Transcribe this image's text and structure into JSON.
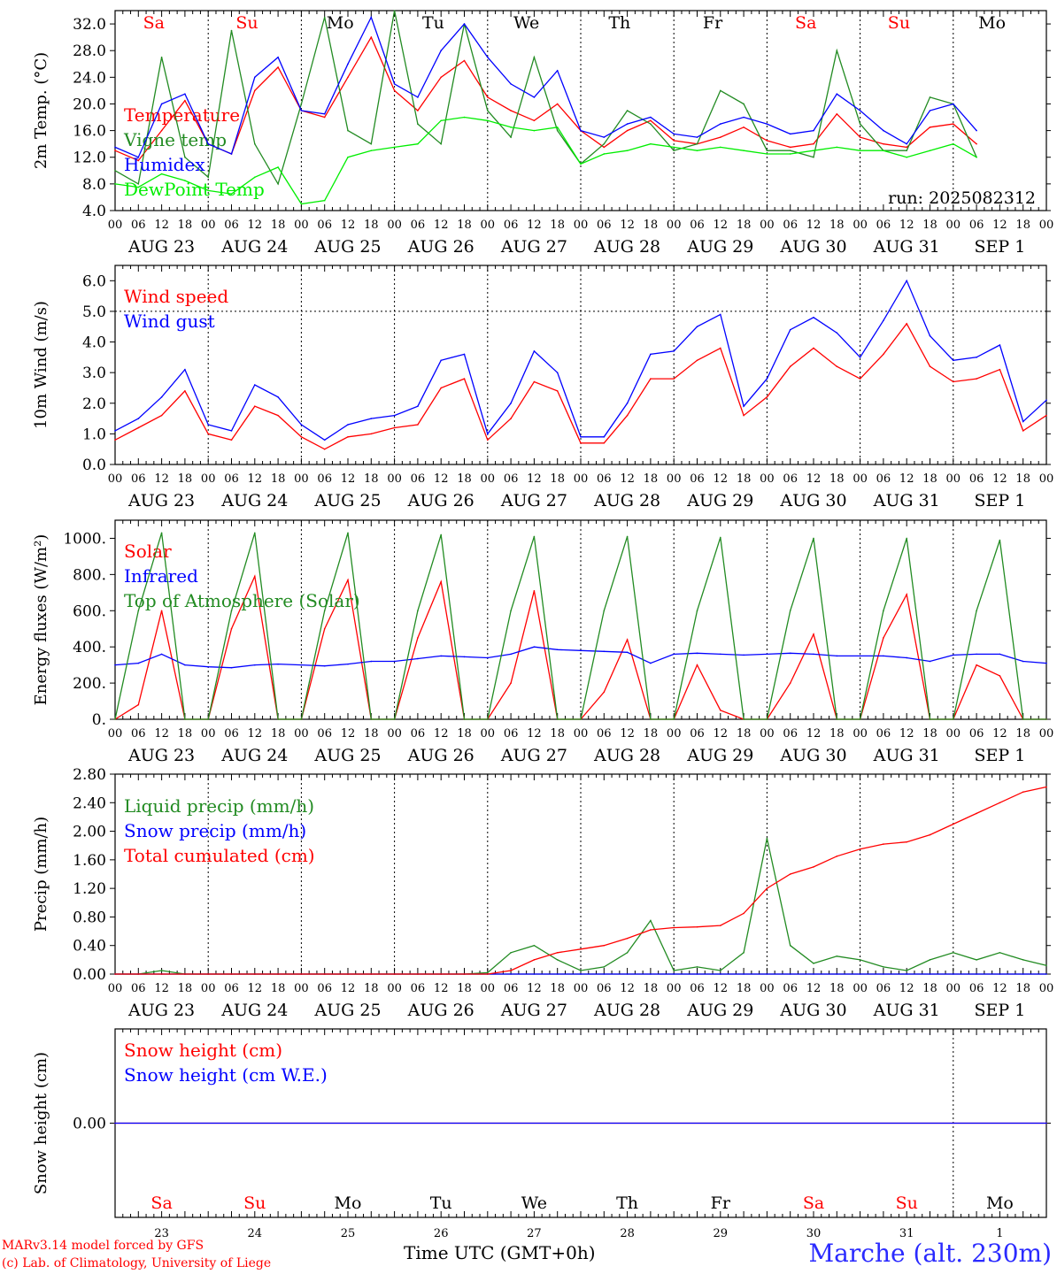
{
  "footer": {
    "model": "MARv3.14 model forced by GFS",
    "lab": "(c) Lab. of Climatology, University of Liege",
    "xlabel": "Time UTC (GMT+0h)",
    "station": "Marche (alt. 230m)"
  },
  "days": {
    "weekdays": [
      "Sa",
      "Su",
      "Mo",
      "Tu",
      "We",
      "Th",
      "Fr",
      "Sa",
      "Su",
      "Mo"
    ],
    "weekend_flags": [
      true,
      true,
      false,
      false,
      false,
      false,
      false,
      true,
      true,
      false
    ],
    "dates": [
      "AUG 23",
      "AUG 24",
      "AUG 25",
      "AUG 26",
      "AUG 27",
      "AUG 28",
      "AUG 29",
      "AUG 30",
      "AUG 31",
      "SEP  1"
    ],
    "day_numbers": [
      "23",
      "24",
      "25",
      "26",
      "27",
      "28",
      "29",
      "30",
      "31",
      "1"
    ],
    "hour_ticks": [
      "00",
      "06",
      "12",
      "18"
    ]
  },
  "colors": {
    "red": "#ff0000",
    "green": "#228b22",
    "blue": "#0000ff",
    "lightgreen": "#00ee00",
    "black": "#000000",
    "weekend": "#ff0000"
  },
  "chart_data": [
    {
      "type": "line",
      "ylabel": "2m Temp. (°C)",
      "yticks": [
        "4.0",
        "8.0",
        "12.0",
        "16.0",
        "20.0",
        "24.0",
        "28.0",
        "32.0"
      ],
      "ylim": [
        4,
        34
      ],
      "run": "run: 2025082312",
      "x_hours": [
        0,
        6,
        12,
        18,
        24,
        30,
        36,
        42,
        48,
        54,
        60,
        66,
        72,
        78,
        84,
        90,
        96,
        102,
        108,
        114,
        120,
        126,
        132,
        138,
        144,
        150,
        156,
        162,
        168,
        174,
        180,
        186,
        192,
        198,
        204,
        210,
        216,
        222,
        228,
        234,
        240
      ],
      "series": [
        {
          "name": "Temperature",
          "color": "red",
          "values": [
            13,
            11.5,
            16,
            20.5,
            14,
            12.5,
            22,
            25.5,
            19,
            18,
            24,
            30,
            22,
            19,
            24,
            26.5,
            21,
            19,
            17.5,
            20,
            16,
            13.5,
            16,
            17.5,
            14.5,
            14,
            15,
            16.5,
            14.5,
            13.5,
            14,
            18.5,
            15,
            14,
            13.5,
            16.5,
            17,
            14,
            null,
            null,
            null
          ]
        },
        {
          "name": "Vigne temp",
          "color": "green",
          "values": [
            10,
            8,
            27,
            12,
            9,
            31,
            14,
            8,
            20,
            33,
            16,
            14,
            34,
            17,
            14,
            32,
            19,
            15,
            27,
            16,
            11,
            14,
            19,
            17,
            13,
            14,
            22,
            20,
            13,
            13,
            12,
            28,
            17,
            13,
            13,
            21,
            20,
            12,
            null,
            null,
            null
          ]
        },
        {
          "name": "Humidex",
          "color": "blue",
          "values": [
            13.5,
            12,
            20,
            21.5,
            14,
            12.5,
            24,
            27,
            19,
            18.5,
            26,
            33,
            23,
            21,
            28,
            32,
            27,
            23,
            21,
            25,
            16,
            15,
            17,
            18,
            15.5,
            15,
            17,
            18,
            17,
            15.5,
            16,
            21.5,
            19,
            16,
            14,
            19,
            20,
            16,
            null,
            null,
            null
          ]
        },
        {
          "name": "DewPoint Temp",
          "color": "lightgreen",
          "values": [
            8,
            7.5,
            9.5,
            8.5,
            7,
            6.5,
            9,
            10.5,
            5,
            5.5,
            12,
            13,
            13.5,
            14,
            17.5,
            18,
            17.5,
            16.5,
            16,
            16.5,
            11,
            12.5,
            13,
            14,
            13.5,
            13,
            13.5,
            13,
            12.5,
            12.5,
            13,
            13.5,
            13,
            13,
            12,
            13,
            14,
            12,
            null,
            null,
            null
          ]
        }
      ]
    },
    {
      "type": "line",
      "ylabel": "10m Wind (m/s)",
      "yticks": [
        "0.0",
        "1.0",
        "2.0",
        "3.0",
        "4.0",
        "5.0",
        "6.0"
      ],
      "ylim": [
        0,
        6.5
      ],
      "reference_line": 5.0,
      "x_hours": [
        0,
        6,
        12,
        18,
        24,
        30,
        36,
        42,
        48,
        54,
        60,
        66,
        72,
        78,
        84,
        90,
        96,
        102,
        108,
        114,
        120,
        126,
        132,
        138,
        144,
        150,
        156,
        162,
        168,
        174,
        180,
        186,
        192,
        198,
        204,
        210,
        216,
        222,
        228,
        234,
        240
      ],
      "series": [
        {
          "name": "Wind speed",
          "color": "red",
          "values": [
            0.8,
            1.2,
            1.6,
            2.4,
            1.0,
            0.8,
            1.9,
            1.6,
            0.9,
            0.5,
            0.9,
            1.0,
            1.2,
            1.3,
            2.5,
            2.8,
            0.8,
            1.5,
            2.7,
            2.4,
            0.7,
            0.7,
            1.6,
            2.8,
            2.8,
            3.4,
            3.8,
            1.6,
            2.2,
            3.2,
            3.8,
            3.2,
            2.8,
            3.6,
            4.6,
            3.2,
            2.7,
            2.8,
            3.1,
            1.1,
            1.6
          ]
        },
        {
          "name": "Wind gust",
          "color": "blue",
          "values": [
            1.1,
            1.5,
            2.2,
            3.1,
            1.3,
            1.1,
            2.6,
            2.2,
            1.3,
            0.8,
            1.3,
            1.5,
            1.6,
            1.9,
            3.4,
            3.6,
            1.0,
            2.0,
            3.7,
            3.0,
            0.9,
            0.9,
            2.0,
            3.6,
            3.7,
            4.5,
            4.9,
            1.9,
            2.8,
            4.4,
            4.8,
            4.3,
            3.5,
            4.7,
            6.0,
            4.2,
            3.4,
            3.5,
            3.9,
            1.4,
            2.1
          ]
        }
      ]
    },
    {
      "type": "line",
      "ylabel": "Energy fluxes (W/m²)",
      "yticks": [
        "0.",
        "200.",
        "400.",
        "600.",
        "800.",
        "1000."
      ],
      "ylim": [
        0,
        1100
      ],
      "x_hours": [
        0,
        6,
        12,
        18,
        24,
        30,
        36,
        42,
        48,
        54,
        60,
        66,
        72,
        78,
        84,
        90,
        96,
        102,
        108,
        114,
        120,
        126,
        132,
        138,
        144,
        150,
        156,
        162,
        168,
        174,
        180,
        186,
        192,
        198,
        204,
        210,
        216,
        222,
        228,
        234,
        240
      ],
      "series": [
        {
          "name": "Solar",
          "color": "red",
          "values": [
            0,
            80,
            600,
            0,
            0,
            500,
            790,
            0,
            0,
            500,
            770,
            0,
            0,
            450,
            760,
            0,
            0,
            200,
            710,
            0,
            0,
            150,
            440,
            0,
            0,
            300,
            50,
            0,
            0,
            200,
            470,
            0,
            0,
            450,
            690,
            0,
            0,
            300,
            240,
            0,
            0
          ]
        },
        {
          "name": "Infrared",
          "color": "blue",
          "values": [
            300,
            310,
            360,
            300,
            290,
            285,
            300,
            305,
            300,
            295,
            305,
            320,
            320,
            335,
            350,
            345,
            340,
            360,
            400,
            385,
            380,
            375,
            370,
            310,
            360,
            365,
            360,
            355,
            360,
            365,
            360,
            350,
            350,
            350,
            340,
            320,
            355,
            360,
            360,
            320,
            310
          ]
        },
        {
          "name": "Top of Atmosphere (Solar)",
          "color": "green",
          "values": [
            0,
            600,
            1030,
            0,
            0,
            600,
            1030,
            0,
            0,
            600,
            1030,
            0,
            0,
            600,
            1020,
            0,
            0,
            600,
            1010,
            0,
            0,
            600,
            1010,
            0,
            0,
            600,
            1005,
            0,
            0,
            600,
            1000,
            0,
            0,
            600,
            1000,
            0,
            0,
            600,
            990,
            0,
            0
          ]
        }
      ]
    },
    {
      "type": "line",
      "ylabel": "Precip (mm/h)",
      "yticks": [
        "0.00",
        "0.40",
        "0.80",
        "1.20",
        "1.60",
        "2.00",
        "2.40",
        "2.80"
      ],
      "ylim": [
        0,
        2.8
      ],
      "x_hours": [
        0,
        6,
        12,
        18,
        24,
        30,
        36,
        42,
        48,
        54,
        60,
        66,
        72,
        78,
        84,
        90,
        96,
        102,
        108,
        114,
        120,
        126,
        132,
        138,
        144,
        150,
        156,
        162,
        168,
        174,
        180,
        186,
        192,
        198,
        204,
        210,
        216,
        222,
        228,
        234,
        240
      ],
      "series": [
        {
          "name": "Liquid precip (mm/h)",
          "color": "green",
          "values": [
            0,
            0,
            0.05,
            0,
            0,
            0,
            0,
            0,
            0,
            0,
            0,
            0,
            0,
            0,
            0,
            0,
            0.02,
            0.3,
            0.4,
            0.2,
            0.05,
            0.1,
            0.3,
            0.75,
            0.05,
            0.1,
            0.05,
            0.3,
            1.9,
            0.4,
            0.15,
            0.25,
            0.2,
            0.1,
            0.05,
            0.2,
            0.3,
            0.2,
            0.3,
            0.2,
            0.12
          ]
        },
        {
          "name": "Snow precip (mm/h)",
          "color": "blue",
          "values": [
            0,
            0,
            0,
            0,
            0,
            0,
            0,
            0,
            0,
            0,
            0,
            0,
            0,
            0,
            0,
            0,
            0,
            0,
            0,
            0,
            0,
            0,
            0,
            0,
            0,
            0,
            0,
            0,
            0,
            0,
            0,
            0,
            0,
            0,
            0,
            0,
            0,
            0,
            0,
            0,
            0
          ]
        },
        {
          "name": "Total cumulated (cm)",
          "color": "red",
          "values": [
            0,
            0,
            0,
            0,
            0,
            0,
            0,
            0,
            0,
            0,
            0,
            0,
            0,
            0,
            0,
            0,
            0,
            0.05,
            0.2,
            0.3,
            0.35,
            0.4,
            0.5,
            0.62,
            0.65,
            0.66,
            0.68,
            0.85,
            1.2,
            1.4,
            1.5,
            1.65,
            1.75,
            1.82,
            1.85,
            1.95,
            2.1,
            2.25,
            2.4,
            2.55,
            2.62
          ]
        }
      ]
    },
    {
      "type": "line",
      "ylabel": "Snow height (cm)",
      "yticks": [
        "0.00"
      ],
      "ylim": [
        -1,
        1
      ],
      "x_hours": [
        0,
        240
      ],
      "series": [
        {
          "name": "Snow height (cm)",
          "color": "red",
          "values": [
            0,
            0
          ]
        },
        {
          "name": "Snow height (cm W.E.)",
          "color": "blue",
          "values": [
            0,
            0
          ]
        }
      ]
    }
  ]
}
